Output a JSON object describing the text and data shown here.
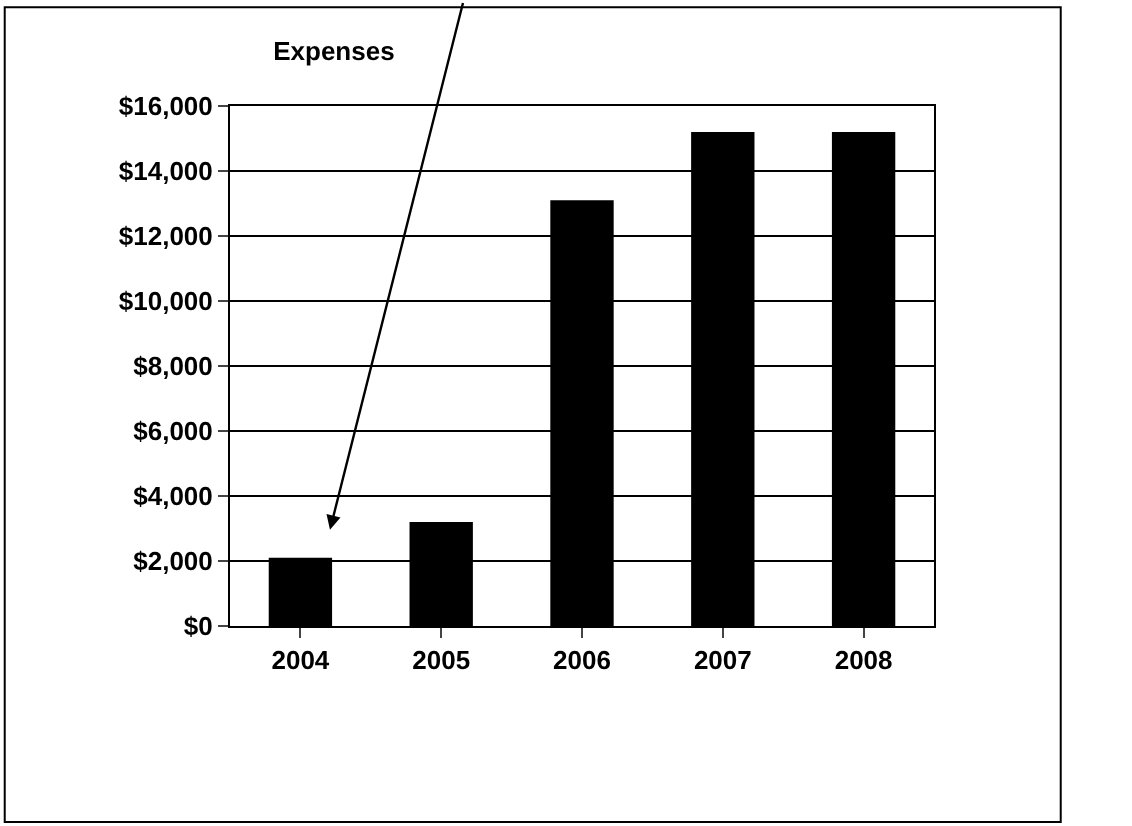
{
  "chart_data": {
    "type": "bar",
    "title": "Expenses",
    "categories": [
      "2004",
      "2005",
      "2006",
      "2007",
      "2008"
    ],
    "values": [
      2100,
      3200,
      13100,
      15200,
      15200
    ],
    "color": "#000000",
    "ylim": [
      0,
      16000
    ],
    "yticks": [
      {
        "value": 0,
        "label": "$0"
      },
      {
        "value": 2000,
        "label": "$2,000"
      },
      {
        "value": 4000,
        "label": "$4,000"
      },
      {
        "value": 6000,
        "label": "$6,000"
      },
      {
        "value": 8000,
        "label": "$8,000"
      },
      {
        "value": 10000,
        "label": "$10,000"
      },
      {
        "value": 12000,
        "label": "$12,000"
      },
      {
        "value": 14000,
        "label": "$14,000"
      },
      {
        "value": 16000,
        "label": "$16,000"
      }
    ],
    "grid": "y"
  }
}
